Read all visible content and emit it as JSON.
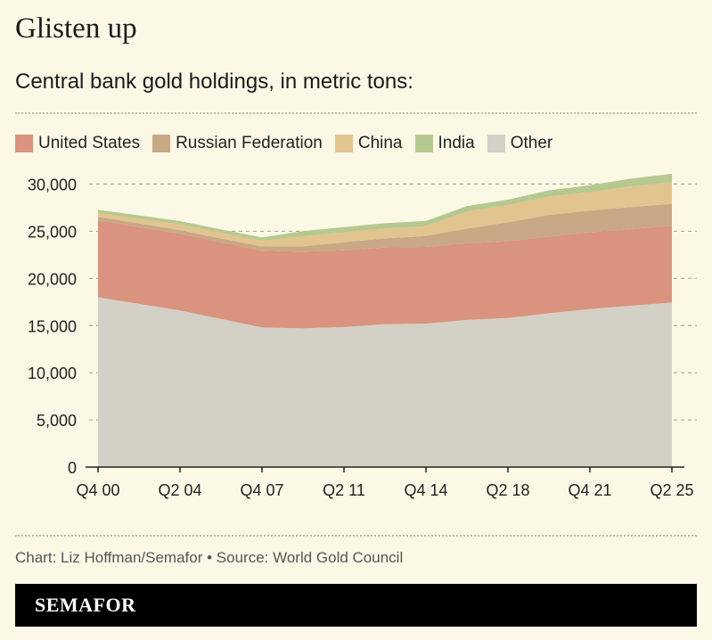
{
  "title": "Glisten up",
  "subtitle": "Central bank gold holdings, in metric tons:",
  "source": "Chart: Liz Hoffman/Semafor • Source: World Gold Council",
  "logo": "SEMAFOR",
  "chart_data": {
    "type": "area",
    "stacked": true,
    "grid": true,
    "legend": "top",
    "ylim": [
      0,
      30000
    ],
    "yticks": [
      "0",
      "5,000",
      "10,000",
      "15,000",
      "20,000",
      "25,000",
      "30,000"
    ],
    "ytick_values": [
      0,
      5000,
      10000,
      15000,
      20000,
      25000,
      30000
    ],
    "xticks": [
      "Q4 00",
      "Q2 04",
      "Q4 07",
      "Q2 11",
      "Q4 14",
      "Q2 18",
      "Q4 21",
      "Q2 25"
    ],
    "x": [
      "Q4 00",
      "Q3 02",
      "Q2 04",
      "Q1 06",
      "Q4 07",
      "Q3 09",
      "Q2 11",
      "Q1 13",
      "Q4 14",
      "Q3 16",
      "Q2 18",
      "Q1 20",
      "Q4 21",
      "Q3 23",
      "Q2 25"
    ],
    "series": [
      {
        "name": "Other",
        "color": "#d3d1c6",
        "values": [
          18000,
          17300,
          16600,
          15700,
          14800,
          14700,
          14850,
          15150,
          15200,
          15600,
          15800,
          16300,
          16750,
          17100,
          17450
        ]
      },
      {
        "name": "United States",
        "color": "#d9937e",
        "values": [
          8140,
          8140,
          8135,
          8135,
          8135,
          8134,
          8134,
          8134,
          8134,
          8134,
          8134,
          8134,
          8134,
          8134,
          8134
        ]
      },
      {
        "name": "Russian Federation",
        "color": "#c8a885",
        "values": [
          384,
          385,
          390,
          400,
          450,
          570,
          850,
          960,
          1150,
          1550,
          2000,
          2290,
          2300,
          2330,
          2330
        ]
      },
      {
        "name": "China",
        "color": "#e2c48f",
        "values": [
          395,
          500,
          600,
          600,
          600,
          1054,
          1054,
          1054,
          1054,
          1820,
          1850,
          1948,
          1948,
          2190,
          2299
        ]
      },
      {
        "name": "India",
        "color": "#b5c98f",
        "values": [
          358,
          358,
          358,
          358,
          358,
          558,
          558,
          558,
          558,
          558,
          580,
          653,
          754,
          820,
          880
        ]
      }
    ],
    "legend_order": [
      "United States",
      "Russian Federation",
      "China",
      "India",
      "Other"
    ]
  }
}
